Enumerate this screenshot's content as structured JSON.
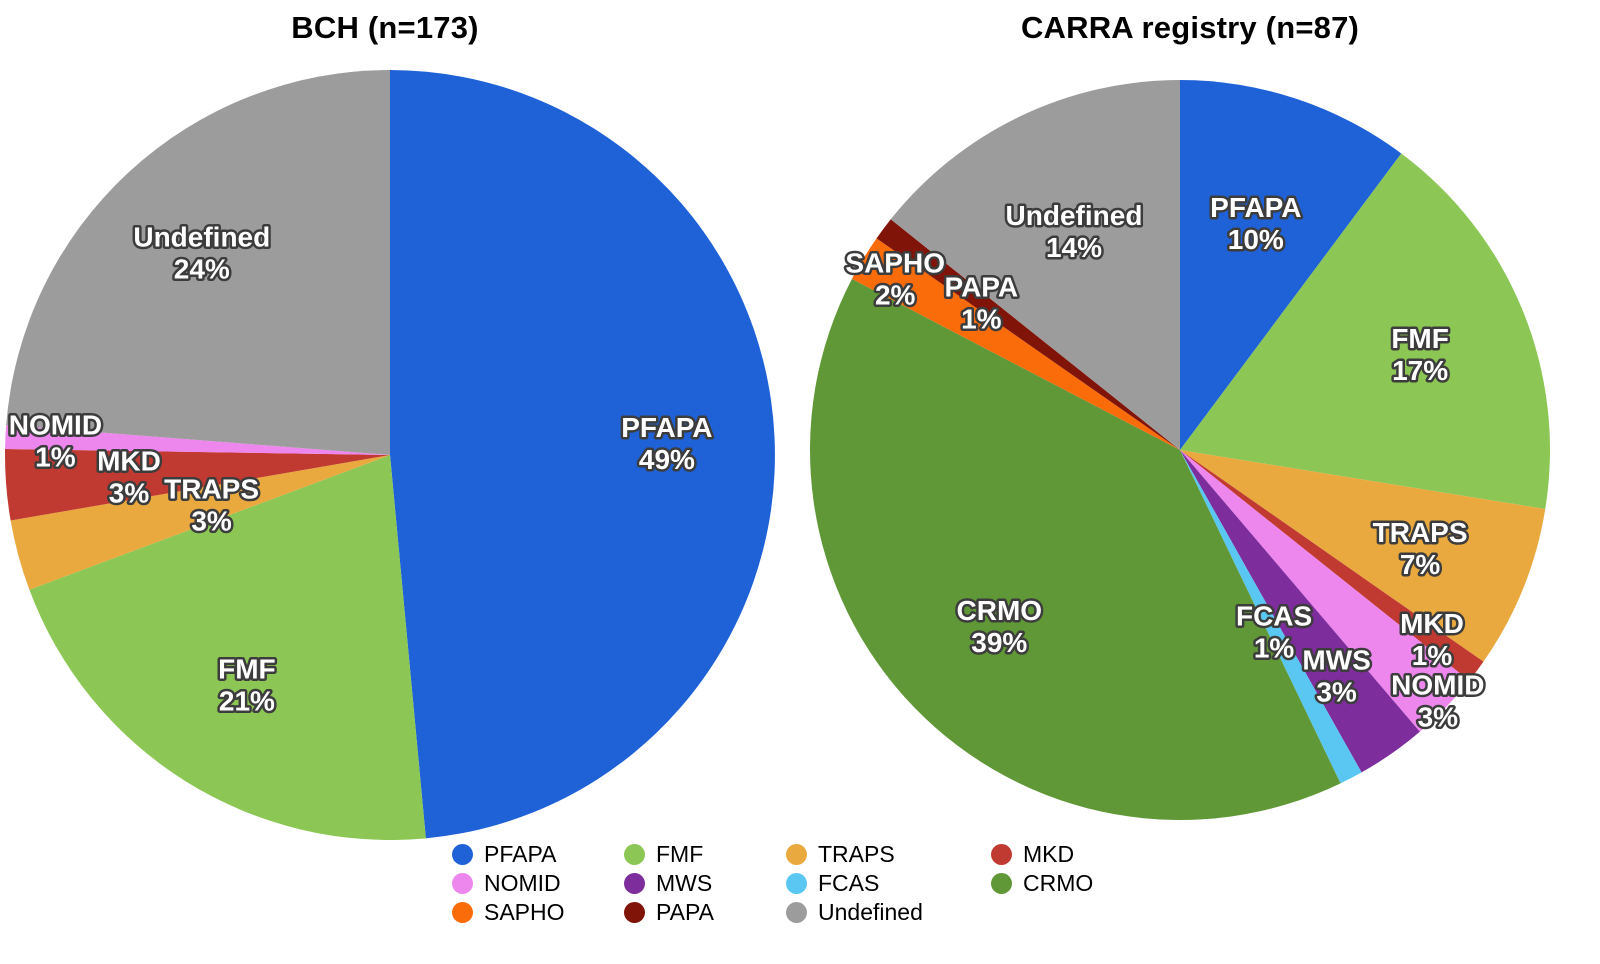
{
  "palette": {
    "PFAPA": "#1F62D8",
    "FMF": "#8CC755",
    "TRAPS": "#E9A93F",
    "MKD": "#C03A31",
    "NOMID": "#ED86ED",
    "MWS": "#7D2D9C",
    "FCAS": "#59C7F2",
    "CRMO": "#609838",
    "SAPHO": "#FA6B0A",
    "PAPA": "#811409",
    "Undefined": "#9C9C9C"
  },
  "chart_data": [
    {
      "type": "pie",
      "title": "BCH (n=173)",
      "start_angle_deg": 0,
      "direction": "clockwise",
      "slices": [
        {
          "label": "PFAPA",
          "pct": 49,
          "pct_label": "49%",
          "label_r": 0.72
        },
        {
          "label": "FMF",
          "pct": 21,
          "pct_label": "21%",
          "label_r": 0.7
        },
        {
          "label": "TRAPS",
          "pct": 3,
          "pct_label": "3%",
          "label_r": 0.48
        },
        {
          "label": "MKD",
          "pct": 3,
          "pct_label": "3%",
          "label_r": 0.68
        },
        {
          "label": "NOMID",
          "pct": 1,
          "pct_label": "1%",
          "label_r": 0.87
        },
        {
          "label": "Undefined",
          "pct": 24,
          "pct_label": "24%",
          "label_r": 0.72
        }
      ]
    },
    {
      "type": "pie",
      "title": "CARRA registry (n=87)",
      "start_angle_deg": 0,
      "direction": "clockwise",
      "slices": [
        {
          "label": "PFAPA",
          "pct": 10,
          "pct_label": "10%",
          "label_r": 0.65
        },
        {
          "label": "FMF",
          "pct": 17,
          "pct_label": "17%",
          "label_r": 0.7
        },
        {
          "label": "TRAPS",
          "pct": 7,
          "pct_label": "7%",
          "label_r": 0.7
        },
        {
          "label": "MKD",
          "pct": 1,
          "pct_label": "1%",
          "label_r": 0.85
        },
        {
          "label": "NOMID",
          "pct": 3,
          "pct_label": "3%",
          "label_r": 0.97
        },
        {
          "label": "MWS",
          "pct": 3,
          "pct_label": "3%",
          "label_r": 0.74
        },
        {
          "label": "FCAS",
          "pct": 1,
          "pct_label": "1%",
          "label_r": 0.55
        },
        {
          "label": "CRMO",
          "pct": 39,
          "pct_label": "39%",
          "label_r": 0.68
        },
        {
          "label": "SAPHO",
          "pct": 2,
          "pct_label": "2%",
          "label_r": 0.9
        },
        {
          "label": "PAPA",
          "pct": 1,
          "pct_label": "1%",
          "label_r": 0.67
        },
        {
          "label": "Undefined",
          "pct": 14,
          "pct_label": "14%",
          "label_r": 0.66
        }
      ]
    }
  ],
  "legend": {
    "position": "bottom-center",
    "columns": 4,
    "items": [
      "PFAPA",
      "FMF",
      "TRAPS",
      "MKD",
      "NOMID",
      "MWS",
      "FCAS",
      "CRMO",
      "SAPHO",
      "PAPA",
      "Undefined"
    ]
  }
}
